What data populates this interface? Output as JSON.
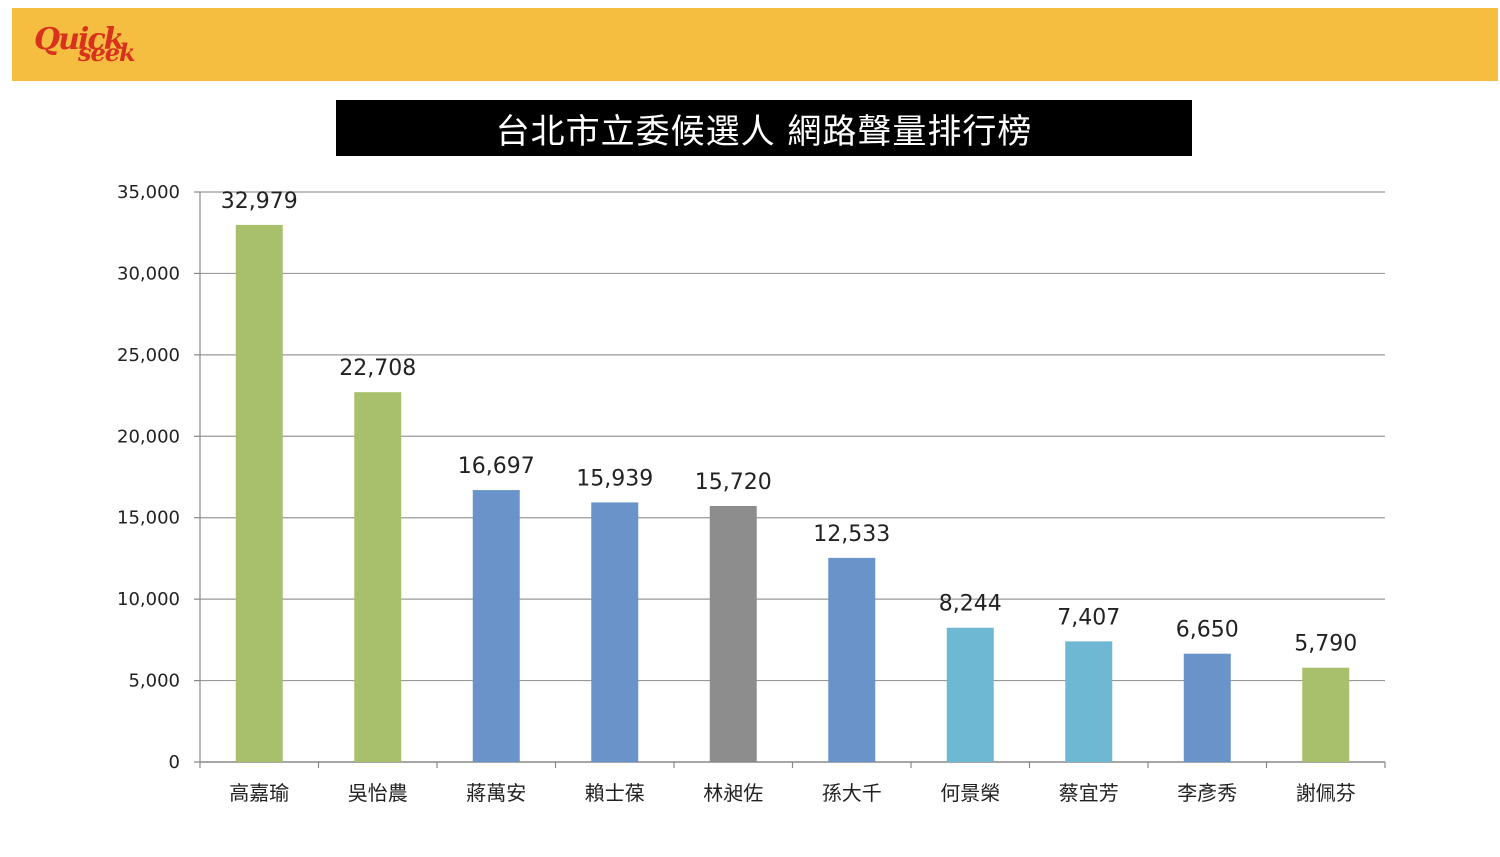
{
  "header": {
    "logo_text_top": "Quick",
    "logo_text_bottom": "seek",
    "band_color": "#f5be40",
    "logo_color": "#d8321e"
  },
  "chart_data": {
    "type": "bar",
    "title": "台北市立委候選人 網路聲量排行榜",
    "xlabel": "",
    "ylabel": "",
    "ylim": [
      0,
      35000
    ],
    "yticks": [
      0,
      5000,
      10000,
      15000,
      20000,
      25000,
      30000,
      35000
    ],
    "ytick_labels": [
      "0",
      "5,000",
      "10,000",
      "15,000",
      "20,000",
      "25,000",
      "30,000",
      "35,000"
    ],
    "grid": true,
    "categories": [
      "高嘉瑜",
      "吳怡農",
      "蔣萬安",
      "賴士葆",
      "林昶佐",
      "孫大千",
      "何景榮",
      "蔡宜芳",
      "李彥秀",
      "謝佩芬"
    ],
    "values": [
      32979,
      22708,
      16697,
      15939,
      15720,
      12533,
      8244,
      7407,
      6650,
      5790
    ],
    "value_labels": [
      "32,979",
      "22,708",
      "16,697",
      "15,939",
      "15,720",
      "12,533",
      "8,244",
      "7,407",
      "6,650",
      "5,790"
    ],
    "colors": [
      "#a8bf6b",
      "#a8bf6b",
      "#6a93c9",
      "#6a93c9",
      "#8d8d8d",
      "#6a93c9",
      "#6fb8d3",
      "#6fb8d3",
      "#6a93c9",
      "#a8bf6b"
    ]
  }
}
